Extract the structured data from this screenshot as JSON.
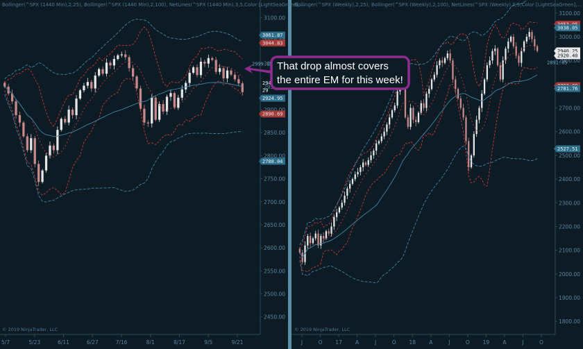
{
  "colors": {
    "background": "#0d1b24",
    "candle_up": "#e6e6e6",
    "candle_down": "#c98a8a",
    "band_inner": "#c23a3a",
    "band_outer": "#3e86a8",
    "netline": "#3e86a8",
    "callout_border": "#8e2d8e",
    "callout_fill": "#8e2d8e"
  },
  "callout": {
    "line1": "That drop almost covers",
    "line2": "the entire EM for this week!"
  },
  "chart_data": [
    {
      "type": "candlestick",
      "header": "Bollinger(^SPX (1440 Min),2,25), Bollinger(^SPX (1440 Min),2,100), NetLines(^SPX (1440 Min),3,5,Color [LightSeaGreen],...",
      "copyright": "© 2019 NinjaTrader, LLC",
      "y_ticks": [
        "3100.00",
        "3050.00",
        "3000.00",
        "2950.00",
        "2900.00",
        "2850.00",
        "2800.00",
        "2750.00",
        "2700.00",
        "2650.00",
        "2600.00",
        "2550.00",
        "2500.00",
        "2450.00"
      ],
      "x_ticks": [
        "5/7",
        "5/23",
        "6/11",
        "6/27",
        "7/16",
        "8/1",
        "8/17",
        "9/5",
        "9/21"
      ],
      "ylim": [
        2430,
        3120
      ],
      "price_tags": [
        {
          "value": 3061.87,
          "label": "3061.87",
          "style": "blue"
        },
        {
          "value": 3044.83,
          "label": "3044.83",
          "style": "red"
        },
        {
          "value": 2999.15,
          "label": "2999.15",
          "style": "text"
        },
        {
          "value": 2924.95,
          "label": "2924.95",
          "style": "blue"
        },
        {
          "value": 2890.69,
          "label": "2890.69",
          "style": "red"
        },
        {
          "value": 2788.04,
          "label": "2788.04",
          "style": "blue"
        }
      ],
      "visible_tag_fragments": [
        "294",
        "29"
      ],
      "closes": [
        2950,
        2935,
        2918,
        2888,
        2872,
        2842,
        2812,
        2838,
        2782,
        2743,
        2768,
        2800,
        2822,
        2812,
        2856,
        2880,
        2872,
        2900,
        2888,
        2924,
        2942,
        2952,
        2960,
        2946,
        2974,
        2988,
        2978,
        3002,
        2996,
        3010,
        3018,
        3020,
        3014,
        2990,
        2972,
        2946,
        2902,
        2872,
        2870,
        2926,
        2878,
        2912,
        2896,
        2928,
        2936,
        2904,
        2926,
        2944,
        2958,
        2980,
        2992,
        2975,
        3004,
        3000,
        3012,
        3008,
        2982,
        2990,
        2968,
        2985,
        2976,
        2966,
        2957,
        2938
      ]
    },
    {
      "type": "candlestick",
      "header": "Bollinger(^SPX (Weekly),2,25), Bollinger(^SPX (Weekly),2,100), NetLines(^SPX (Weekly),3,5,Color [LightSeaGreen],...",
      "copyright": "© 2019 NinjaTrader, LLC",
      "y_ticks": [
        "3100.00",
        "3000.00",
        "2900.00",
        "2800.00",
        "2700.00",
        "2600.00",
        "2500.00",
        "2400.00",
        "2300.00",
        "2200.00",
        "2100.00",
        "2000.00",
        "1900.00",
        "1800.00"
      ],
      "x_ticks": [
        "J",
        "O",
        "17",
        "A",
        "J",
        "O",
        "18",
        "A",
        "J",
        "O",
        "19",
        "A",
        "J",
        "O"
      ],
      "ylim": [
        1780,
        3120
      ],
      "price_tags": [
        {
          "value": 3053.05,
          "label": "3053.05",
          "style": "red"
        },
        {
          "value": 3038.05,
          "label": "3038.05",
          "style": "blue"
        },
        {
          "value": 2940.25,
          "label": "2940.25",
          "style": "white"
        },
        {
          "value": 2920.4,
          "label": "2920.40",
          "style": "white"
        },
        {
          "value": 2891.85,
          "label": "2891.85",
          "style": "text"
        },
        {
          "value": 2793.89,
          "label": "2793.89",
          "style": "red"
        },
        {
          "value": 2781.76,
          "label": "2781.76",
          "style": "blue"
        },
        {
          "value": 2527.51,
          "label": "2527.51",
          "style": "blue"
        }
      ],
      "closes": [
        2090,
        2050,
        2120,
        2160,
        2130,
        2150,
        2170,
        2120,
        2160,
        2150,
        2180,
        2170,
        2200,
        2240,
        2260,
        2280,
        2300,
        2330,
        2360,
        2380,
        2400,
        2420,
        2430,
        2450,
        2470,
        2460,
        2480,
        2500,
        2520,
        2550,
        2560,
        2580,
        2600,
        2630,
        2660,
        2690,
        2710,
        2770,
        2840,
        2850,
        2660,
        2620,
        2700,
        2650,
        2640,
        2680,
        2720,
        2700,
        2760,
        2780,
        2820,
        2840,
        2880,
        2900,
        2890,
        2910,
        2930,
        2900,
        2820,
        2780,
        2740,
        2700,
        2660,
        2560,
        2450,
        2500,
        2590,
        2650,
        2700,
        2760,
        2820,
        2880,
        2900,
        2940,
        2950,
        2880,
        2820,
        2900,
        2950,
        2980,
        3000,
        2960,
        2920,
        2890,
        2940,
        2980,
        3000,
        3020,
        2990,
        2960,
        2940
      ]
    }
  ]
}
